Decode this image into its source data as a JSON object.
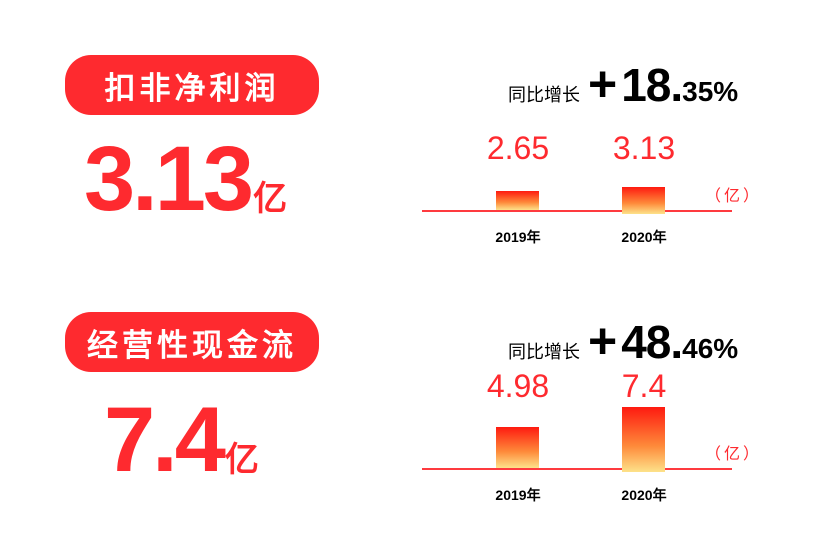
{
  "chart_data": [
    {
      "type": "bar",
      "title": "扣非净利润",
      "headline_value": "3.13",
      "headline_unit": "亿",
      "yoy_label": "同比增长",
      "yoy_sign": "+",
      "yoy_int": "18.",
      "yoy_dec": "35%",
      "categories": [
        "2019年",
        "2020年"
      ],
      "values": [
        2.65,
        3.13
      ],
      "value_labels": [
        "2.65",
        "3.13"
      ],
      "unit": "（亿）"
    },
    {
      "type": "bar",
      "title": "经营性现金流",
      "headline_value": "7.4",
      "headline_unit": "亿",
      "yoy_label": "同比增长",
      "yoy_sign": "+",
      "yoy_int": "48.",
      "yoy_dec": "46%",
      "categories": [
        "2019年",
        "2020年"
      ],
      "values": [
        4.98,
        7.4
      ],
      "value_labels": [
        "4.98",
        "7.4"
      ],
      "unit": "（亿）"
    }
  ]
}
